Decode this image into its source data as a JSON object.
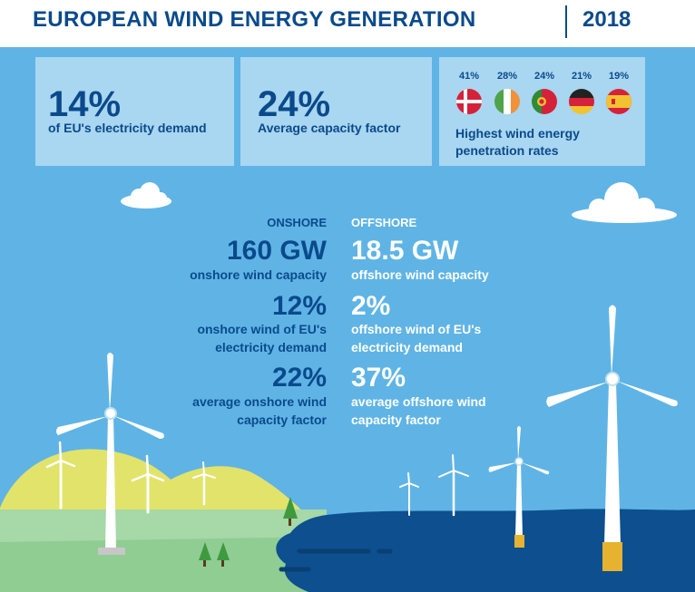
{
  "header": {
    "title": "EUROPEAN WIND ENERGY GENERATION",
    "year": "2018"
  },
  "summary": {
    "demand_share": {
      "value": "14%",
      "label": "of EU's electricity demand"
    },
    "capacity_factor": {
      "value": "24%",
      "label": "Average capacity factor"
    },
    "penetration": {
      "label": "Highest wind energy penetration rates",
      "countries": [
        {
          "pct": "41%",
          "flag": "denmark-flag-icon"
        },
        {
          "pct": "28%",
          "flag": "ireland-flag-icon"
        },
        {
          "pct": "24%",
          "flag": "portugal-flag-icon"
        },
        {
          "pct": "21%",
          "flag": "germany-flag-icon"
        },
        {
          "pct": "19%",
          "flag": "spain-flag-icon"
        }
      ]
    }
  },
  "onshore": {
    "heading": "ONSHORE",
    "capacity": {
      "value": "160 GW",
      "label": "onshore wind capacity"
    },
    "demand": {
      "value": "12%",
      "label_line1": "onshore wind of EU's",
      "label_line2": "electricity demand"
    },
    "factor": {
      "value": "22%",
      "label_line1": "average onshore wind",
      "label_line2": "capacity factor"
    }
  },
  "offshore": {
    "heading": "OFFSHORE",
    "capacity": {
      "value": "18.5 GW",
      "label": "offshore wind capacity"
    },
    "demand": {
      "value": "2%",
      "label_line1": "offshore wind of EU's",
      "label_line2": "electricity demand"
    },
    "factor": {
      "value": "37%",
      "label_line1": "average offshore wind",
      "label_line2": "capacity factor"
    }
  },
  "colors": {
    "sky": "#5fb4e5",
    "navy": "#0a4a8c",
    "box": "#a9d6f0",
    "sea": "#0d4f8f",
    "hill": "#e2e36a",
    "grass": "#a6d8a8"
  }
}
